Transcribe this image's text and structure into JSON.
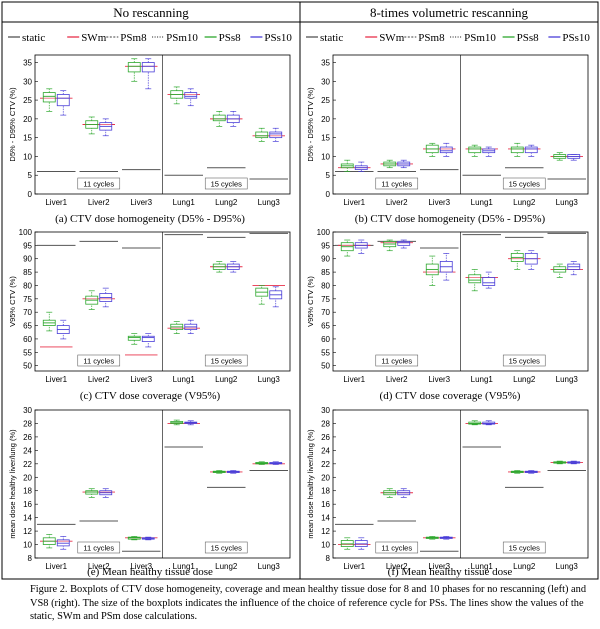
{
  "columns": [
    {
      "title": "No rescanning"
    },
    {
      "title": "8-times volumetric rescanning"
    }
  ],
  "legend": [
    "static",
    "SWm",
    "PSm8",
    "PSm10",
    "PSs8",
    "PSs10"
  ],
  "colors": {
    "static": "#555555",
    "SWm": "#e8314a",
    "PSm8": "#666666",
    "PSm10": "#444444",
    "PSs8": "#2ea82e",
    "PSs10": "#4a3fd8"
  },
  "group_labels": {
    "left": "11 cycles",
    "right": "15 cycles"
  },
  "categories": [
    "Liver1",
    "Liver2",
    "Liver3",
    "Lung1",
    "Lung2",
    "Lung3"
  ],
  "captions": {
    "a": "(a) CTV dose homogeneity (D5% - D95%)",
    "b": "(b) CTV dose homogeneity (D5% - D95%)",
    "c": "(c) CTV dose coverage (V95%)",
    "d": "(d) CTV dose coverage (V95%)",
    "e": "(e) Mean healthy tissue dose",
    "f": "(f) Mean healthy tissue dose"
  },
  "figure_caption": "Figure 2. Boxplots of CTV dose homogeneity, coverage and mean healthy tissue dose for 8 and 10 phases for no rescanning (left) and VS8 (right). The size of the boxplots indicates the influence of the choice of reference cycle for PSs. The lines show the values of the static, SWm and PSm dose calculations.",
  "chart_data": [
    {
      "id": "a",
      "type": "box",
      "ylabel": "D5% - D95% CTV (%)",
      "ylim": [
        0,
        37
      ],
      "yticks": [
        0,
        5,
        10,
        15,
        20,
        25,
        30,
        35
      ],
      "static": [
        6,
        6,
        6.5,
        5,
        7,
        4
      ],
      "swm": [
        25.5,
        18.5,
        34,
        26.5,
        20,
        15.5
      ],
      "ps8": [
        [
          22,
          24.5,
          26,
          27,
          28
        ],
        [
          16,
          17.5,
          18.5,
          19.5,
          20.5
        ],
        [
          30,
          32.5,
          34,
          35,
          36
        ],
        [
          24,
          25.5,
          26.5,
          27.5,
          28.5
        ],
        [
          18,
          19.5,
          20,
          21,
          22
        ],
        [
          14,
          15,
          15.5,
          16.5,
          17.5
        ]
      ],
      "ps10": [
        [
          21,
          23.5,
          25.5,
          26.5,
          27.5
        ],
        [
          15.5,
          17,
          18,
          19,
          20
        ],
        [
          28,
          32.5,
          34,
          35,
          36
        ],
        [
          23.5,
          25.5,
          26,
          27,
          28
        ],
        [
          18,
          19,
          20,
          21,
          22
        ],
        [
          14,
          15,
          16,
          16.5,
          17.5
        ]
      ]
    },
    {
      "id": "b",
      "type": "box",
      "ylabel": "D5% - D95% CTV (%)",
      "ylim": [
        0,
        37
      ],
      "yticks": [
        0,
        5,
        10,
        15,
        20,
        25,
        30,
        35
      ],
      "static": [
        6,
        6,
        6.5,
        5,
        7,
        4
      ],
      "swm": [
        7,
        8,
        12,
        12,
        12,
        10
      ],
      "ps8": [
        [
          6,
          7,
          7.5,
          8,
          9
        ],
        [
          7,
          7.5,
          8,
          8.5,
          9
        ],
        [
          10,
          11,
          12,
          13,
          13.5
        ],
        [
          10,
          11,
          12,
          12.5,
          13
        ],
        [
          10,
          11,
          12,
          12.5,
          13.5
        ],
        [
          9,
          9.5,
          10,
          10.5,
          11
        ]
      ],
      "ps10": [
        [
          6,
          6.5,
          7,
          7.5,
          8.5
        ],
        [
          7,
          7.5,
          8,
          8.5,
          9
        ],
        [
          10,
          11,
          11.5,
          12.5,
          13.5
        ],
        [
          10,
          11,
          11.5,
          12,
          12.5
        ],
        [
          10,
          11,
          12,
          12.5,
          13
        ],
        [
          9,
          9.5,
          10,
          10.5,
          10.5
        ]
      ]
    },
    {
      "id": "c",
      "type": "box",
      "ylabel": "V95% CTV (%)",
      "ylim": [
        48,
        100
      ],
      "yticks": [
        50,
        55,
        60,
        65,
        70,
        75,
        80,
        85,
        90,
        95,
        100
      ],
      "static": [
        95,
        96.5,
        94,
        99,
        98,
        99.5
      ],
      "swm": [
        57,
        75,
        54,
        64,
        87,
        80
      ],
      "ps8": [
        [
          63,
          65,
          66,
          67,
          70
        ],
        [
          71,
          73,
          74.5,
          76,
          78
        ],
        [
          58,
          59.5,
          60.5,
          61,
          62
        ],
        [
          62,
          63.5,
          64.5,
          65.5,
          66.5
        ],
        [
          85,
          86,
          87,
          88,
          89
        ],
        [
          73,
          76,
          77.5,
          79,
          80
        ]
      ],
      "ps10": [
        [
          60,
          62,
          63.5,
          65,
          67
        ],
        [
          72,
          74,
          75.5,
          77,
          79
        ],
        [
          57,
          59,
          60.5,
          61,
          62
        ],
        [
          62,
          63.5,
          64.5,
          65.5,
          67
        ],
        [
          85,
          86,
          87,
          88,
          89
        ],
        [
          72,
          75,
          76.5,
          78,
          79.5
        ]
      ]
    },
    {
      "id": "d",
      "type": "box",
      "ylabel": "V95% CTV (%)",
      "ylim": [
        48,
        100
      ],
      "yticks": [
        50,
        55,
        60,
        65,
        70,
        75,
        80,
        85,
        90,
        95,
        100
      ],
      "static": [
        95,
        96.5,
        94,
        99,
        98,
        99.5
      ],
      "swm": [
        95,
        96,
        85,
        83,
        90,
        86
      ],
      "ps8": [
        [
          91,
          93,
          94.5,
          96,
          97
        ],
        [
          93,
          94.5,
          95.5,
          96.5,
          97
        ],
        [
          80,
          84,
          86,
          88,
          91
        ],
        [
          78,
          81,
          82,
          84,
          86
        ],
        [
          86,
          89,
          90.5,
          92,
          93
        ],
        [
          83,
          85,
          86,
          87,
          88
        ]
      ],
      "ps10": [
        [
          92,
          94,
          95,
          96,
          97
        ],
        [
          94,
          95,
          96,
          96.5,
          97
        ],
        [
          82,
          85,
          87,
          89,
          92
        ],
        [
          79,
          80,
          81,
          83,
          85
        ],
        [
          86,
          88,
          90,
          92,
          93
        ],
        [
          84,
          86,
          87,
          88,
          89
        ]
      ]
    },
    {
      "id": "e",
      "type": "box",
      "ylabel": "mean dose healthy liver/lung (%)",
      "ylim": [
        8,
        30
      ],
      "yticks": [
        8,
        10,
        12,
        14,
        16,
        18,
        20,
        22,
        24,
        26,
        28,
        30
      ],
      "static": [
        13,
        13.5,
        9,
        24.5,
        18.5,
        21
      ],
      "swm": [
        10.5,
        17.8,
        11,
        28,
        20.8,
        22
      ],
      "ps8": [
        [
          9.5,
          10,
          10.5,
          11,
          11.5
        ],
        [
          17,
          17.5,
          17.8,
          18,
          18.3
        ],
        [
          10.7,
          10.8,
          11,
          11.1,
          11.2
        ],
        [
          27.8,
          28,
          28.1,
          28.3,
          28.5
        ],
        [
          20.6,
          20.7,
          20.8,
          20.9,
          21
        ],
        [
          21.9,
          22,
          22.1,
          22.2,
          22.3
        ]
      ],
      "ps10": [
        [
          9.3,
          9.8,
          10.2,
          10.7,
          11.2
        ],
        [
          17,
          17.4,
          17.7,
          18,
          18.3
        ],
        [
          10.7,
          10.8,
          10.9,
          11,
          11.1
        ],
        [
          27.8,
          28,
          28.1,
          28.2,
          28.4
        ],
        [
          20.6,
          20.7,
          20.8,
          20.9,
          21
        ],
        [
          21.9,
          22,
          22.1,
          22.2,
          22.3
        ]
      ]
    },
    {
      "id": "f",
      "type": "box",
      "ylabel": "mean dose healthy liver/lung (%)",
      "ylim": [
        8,
        30
      ],
      "yticks": [
        8,
        10,
        12,
        14,
        16,
        18,
        20,
        22,
        24,
        26,
        28,
        30
      ],
      "static": [
        13,
        13.5,
        9,
        24.5,
        18.5,
        21
      ],
      "swm": [
        10,
        17.7,
        11,
        28,
        20.8,
        22.2
      ],
      "ps8": [
        [
          9.3,
          9.7,
          10.1,
          10.6,
          11
        ],
        [
          17,
          17.4,
          17.7,
          18,
          18.3
        ],
        [
          10.8,
          10.9,
          11,
          11.1,
          11.2
        ],
        [
          27.8,
          27.9,
          28,
          28.2,
          28.4
        ],
        [
          20.6,
          20.7,
          20.8,
          20.9,
          21
        ],
        [
          22,
          22.1,
          22.2,
          22.3,
          22.4
        ]
      ],
      "ps10": [
        [
          9.3,
          9.7,
          10.1,
          10.6,
          11
        ],
        [
          17,
          17.4,
          17.7,
          18,
          18.3
        ],
        [
          10.8,
          10.9,
          11,
          11.1,
          11.2
        ],
        [
          27.8,
          27.9,
          28,
          28.2,
          28.4
        ],
        [
          20.6,
          20.7,
          20.8,
          20.9,
          21
        ],
        [
          22,
          22.1,
          22.2,
          22.3,
          22.4
        ]
      ]
    }
  ]
}
